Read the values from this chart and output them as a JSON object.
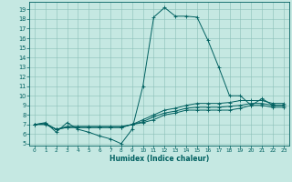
{
  "title": "",
  "xlabel": "Humidex (Indice chaleur)",
  "x_ticks": [
    0,
    1,
    2,
    3,
    4,
    5,
    6,
    7,
    8,
    9,
    10,
    11,
    12,
    13,
    14,
    15,
    16,
    17,
    18,
    19,
    20,
    21,
    22,
    23
  ],
  "y_ticks": [
    5,
    6,
    7,
    8,
    9,
    10,
    11,
    12,
    13,
    14,
    15,
    16,
    17,
    18,
    19
  ],
  "xlim": [
    -0.5,
    23.5
  ],
  "ylim": [
    4.8,
    19.8
  ],
  "background_color": "#c5e8e2",
  "grid_color": "#8bbfb8",
  "line_color": "#006060",
  "series": [
    {
      "x": [
        0,
        1,
        2,
        3,
        4,
        5,
        6,
        7,
        8,
        9,
        10,
        11,
        12,
        13,
        14,
        15,
        16,
        17,
        18,
        19,
        20,
        21,
        22,
        23
      ],
      "y": [
        7.0,
        7.2,
        6.2,
        7.2,
        6.5,
        6.2,
        5.8,
        5.5,
        5.0,
        6.5,
        11.0,
        18.2,
        19.2,
        18.3,
        18.3,
        18.2,
        15.8,
        13.0,
        10.0,
        10.0,
        9.0,
        9.7,
        9.0,
        9.0
      ]
    },
    {
      "x": [
        0,
        1,
        2,
        3,
        4,
        5,
        6,
        7,
        8,
        9,
        10,
        11,
        12,
        13,
        14,
        15,
        16,
        17,
        18,
        19,
        20,
        21,
        22,
        23
      ],
      "y": [
        7.0,
        7.1,
        6.5,
        6.8,
        6.8,
        6.8,
        6.8,
        6.8,
        6.8,
        7.0,
        7.5,
        8.0,
        8.5,
        8.7,
        9.0,
        9.2,
        9.2,
        9.2,
        9.3,
        9.5,
        9.5,
        9.5,
        9.2,
        9.2
      ]
    },
    {
      "x": [
        0,
        1,
        2,
        3,
        4,
        5,
        6,
        7,
        8,
        9,
        10,
        11,
        12,
        13,
        14,
        15,
        16,
        17,
        18,
        19,
        20,
        21,
        22,
        23
      ],
      "y": [
        7.0,
        7.1,
        6.5,
        6.7,
        6.7,
        6.7,
        6.7,
        6.7,
        6.7,
        7.0,
        7.3,
        7.8,
        8.2,
        8.4,
        8.7,
        8.8,
        8.8,
        8.8,
        8.9,
        9.0,
        9.2,
        9.2,
        9.0,
        9.0
      ]
    },
    {
      "x": [
        0,
        1,
        2,
        3,
        4,
        5,
        6,
        7,
        8,
        9,
        10,
        11,
        12,
        13,
        14,
        15,
        16,
        17,
        18,
        19,
        20,
        21,
        22,
        23
      ],
      "y": [
        7.0,
        7.0,
        6.5,
        6.7,
        6.7,
        6.7,
        6.7,
        6.7,
        6.7,
        7.0,
        7.2,
        7.5,
        8.0,
        8.2,
        8.5,
        8.5,
        8.5,
        8.5,
        8.5,
        8.7,
        9.0,
        9.0,
        8.8,
        8.8
      ]
    }
  ]
}
